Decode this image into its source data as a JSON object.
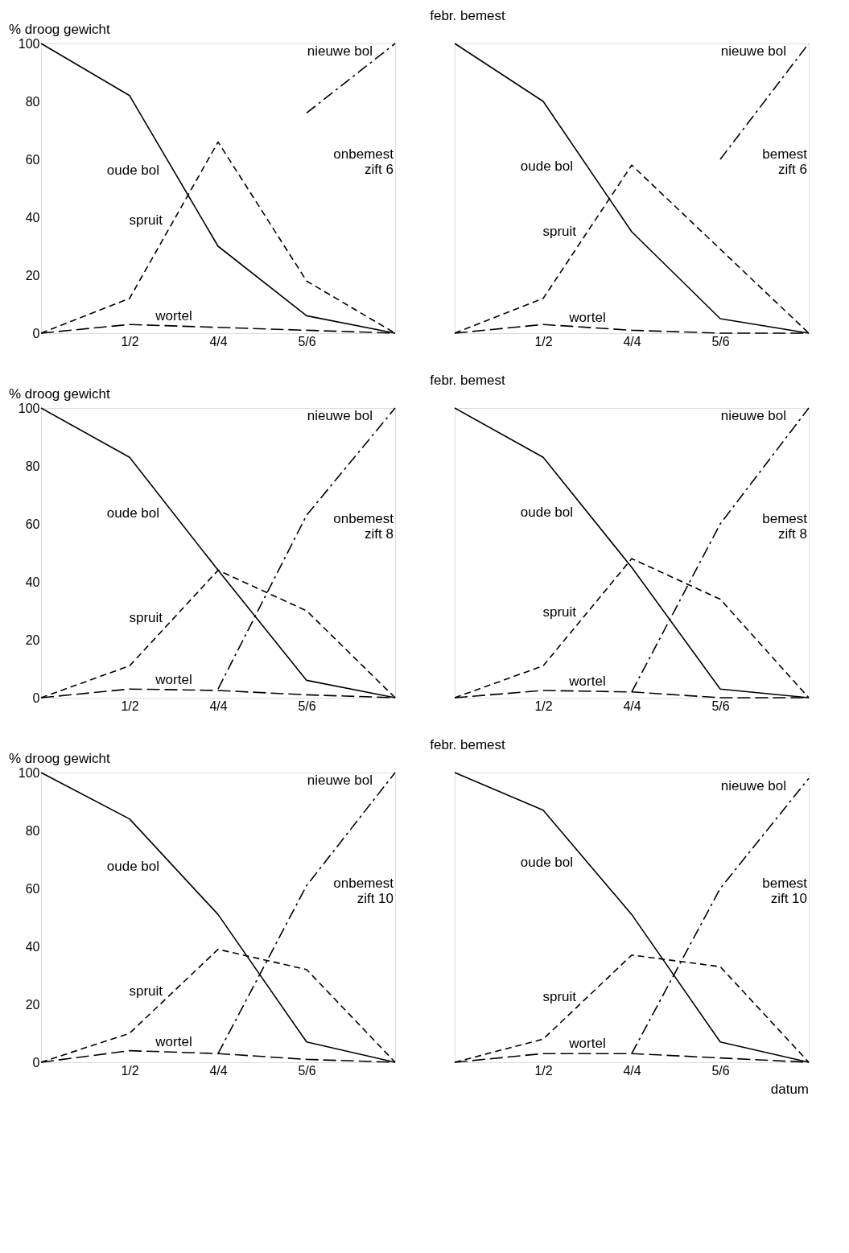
{
  "chart_data": [
    {
      "type": "line",
      "ylabel": "% droog gewicht",
      "categories": [
        null,
        "1/2",
        "4/4",
        "5/6",
        null
      ],
      "ylim": [
        0,
        100
      ],
      "yticks": [
        0,
        20,
        40,
        60,
        80,
        100
      ],
      "legend": false,
      "grid": false,
      "marker": "none",
      "annotations": [
        "onbemest\nzift 6"
      ],
      "series": [
        {
          "name": "oude bol",
          "color": "#000000",
          "line_style": "solid",
          "values": [
            100,
            82,
            30,
            6,
            0
          ]
        },
        {
          "name": "spruit",
          "color": "#000000",
          "line_style": "dashed",
          "values": [
            0,
            12,
            66,
            18,
            0
          ]
        },
        {
          "name": "wortel",
          "color": "#000000",
          "line_style": "longdash",
          "values": [
            0,
            3,
            2,
            1,
            0
          ]
        },
        {
          "name": "nieuwe bol",
          "color": "#000000",
          "line_style": "dashdot",
          "values": [
            null,
            null,
            null,
            76,
            100
          ]
        }
      ]
    },
    {
      "type": "line",
      "title": "febr. bemest",
      "categories": [
        null,
        "1/2",
        "4/4",
        "5/6",
        null
      ],
      "ylim": [
        0,
        100
      ],
      "yticks": [
        0,
        20,
        40,
        60,
        80,
        100
      ],
      "tick_labels": "x",
      "legend": false,
      "grid": false,
      "marker": "none",
      "annotations": [
        "bemest\nzift 6"
      ],
      "series": [
        {
          "name": "oude bol",
          "color": "#000000",
          "line_style": "solid",
          "values": [
            100,
            80,
            35,
            5,
            0
          ]
        },
        {
          "name": "spruit",
          "color": "#000000",
          "line_style": "dashed",
          "values": [
            0,
            12,
            58,
            29,
            0
          ]
        },
        {
          "name": "wortel",
          "color": "#000000",
          "line_style": "longdash",
          "values": [
            0,
            3,
            1,
            0,
            0
          ]
        },
        {
          "name": "nieuwe bol",
          "color": "#000000",
          "line_style": "dashdot",
          "values": [
            null,
            null,
            null,
            60,
            100
          ]
        }
      ]
    },
    {
      "type": "line",
      "ylabel": "% droog gewicht",
      "categories": [
        null,
        "1/2",
        "4/4",
        "5/6",
        null
      ],
      "ylim": [
        0,
        100
      ],
      "yticks": [
        0,
        20,
        40,
        60,
        80,
        100
      ],
      "legend": false,
      "grid": false,
      "marker": "none",
      "annotations": [
        "onbemest\nzift 8"
      ],
      "series": [
        {
          "name": "oude bol",
          "color": "#000000",
          "line_style": "solid",
          "values": [
            100,
            83,
            44,
            6,
            0
          ]
        },
        {
          "name": "spruit",
          "color": "#000000",
          "line_style": "dashed",
          "values": [
            0,
            11,
            44,
            30,
            0
          ]
        },
        {
          "name": "wortel",
          "color": "#000000",
          "line_style": "longdash",
          "values": [
            0,
            3,
            2.5,
            1,
            0
          ]
        },
        {
          "name": "nieuwe bol",
          "color": "#000000",
          "line_style": "dashdot",
          "values": [
            null,
            null,
            3,
            63,
            100
          ]
        }
      ]
    },
    {
      "type": "line",
      "title": "febr. bemest",
      "categories": [
        null,
        "1/2",
        "4/4",
        "5/6",
        null
      ],
      "ylim": [
        0,
        100
      ],
      "yticks": [
        0,
        20,
        40,
        60,
        80,
        100
      ],
      "tick_labels": "x",
      "legend": false,
      "grid": false,
      "marker": "none",
      "annotations": [
        "bemest\nzift 8"
      ],
      "series": [
        {
          "name": "oude bol",
          "color": "#000000",
          "line_style": "solid",
          "values": [
            100,
            83,
            45,
            3,
            0
          ]
        },
        {
          "name": "spruit",
          "color": "#000000",
          "line_style": "dashed",
          "values": [
            0,
            11,
            48,
            34,
            0
          ]
        },
        {
          "name": "wortel",
          "color": "#000000",
          "line_style": "longdash",
          "values": [
            0,
            2.5,
            2,
            0,
            0
          ]
        },
        {
          "name": "nieuwe bol",
          "color": "#000000",
          "line_style": "dashdot",
          "values": [
            null,
            null,
            2,
            60,
            100
          ]
        }
      ]
    },
    {
      "type": "line",
      "ylabel": "% droog gewicht",
      "categories": [
        null,
        "1/2",
        "4/4",
        "5/6",
        null
      ],
      "ylim": [
        0,
        100
      ],
      "yticks": [
        0,
        20,
        40,
        60,
        80,
        100
      ],
      "legend": false,
      "grid": false,
      "marker": "none",
      "annotations": [
        "onbemest\nzift 10"
      ],
      "series": [
        {
          "name": "oude bol",
          "color": "#000000",
          "line_style": "solid",
          "values": [
            100,
            84,
            51,
            7,
            0
          ]
        },
        {
          "name": "spruit",
          "color": "#000000",
          "line_style": "dashed",
          "values": [
            0,
            10,
            39,
            32,
            0
          ]
        },
        {
          "name": "wortel",
          "color": "#000000",
          "line_style": "longdash",
          "values": [
            0,
            4,
            3,
            1,
            0
          ]
        },
        {
          "name": "nieuwe bol",
          "color": "#000000",
          "line_style": "dashdot",
          "values": [
            null,
            null,
            3,
            61,
            100
          ]
        }
      ]
    },
    {
      "type": "line",
      "title": "febr. bemest",
      "xlabel": "datum",
      "categories": [
        null,
        "1/2",
        "4/4",
        "5/6",
        null
      ],
      "ylim": [
        0,
        100
      ],
      "yticks": [
        0,
        20,
        40,
        60,
        80,
        100
      ],
      "tick_labels": "x",
      "legend": false,
      "grid": false,
      "marker": "none",
      "annotations": [
        "bemest\nzift 10"
      ],
      "series": [
        {
          "name": "oude bol",
          "color": "#000000",
          "line_style": "solid",
          "values": [
            100,
            87,
            51,
            7,
            0
          ]
        },
        {
          "name": "spruit",
          "color": "#000000",
          "line_style": "dashed",
          "values": [
            0,
            8,
            37,
            33,
            0
          ]
        },
        {
          "name": "wortel",
          "color": "#000000",
          "line_style": "longdash",
          "values": [
            0,
            3,
            3,
            1.5,
            0
          ]
        },
        {
          "name": "nieuwe bol",
          "color": "#000000",
          "line_style": "dashdot",
          "values": [
            null,
            null,
            3,
            60,
            98
          ]
        }
      ]
    }
  ]
}
